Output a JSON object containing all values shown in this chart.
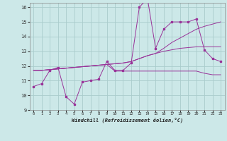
{
  "xlabel": "Windchill (Refroidissement éolien,°C)",
  "background_color": "#cce8e8",
  "grid_color": "#aacccc",
  "line_color": "#993399",
  "xmin": 0,
  "xmax": 23,
  "ymin": 9,
  "ymax": 16,
  "yticks": [
    9,
    10,
    11,
    12,
    13,
    14,
    15,
    16
  ],
  "xticks": [
    0,
    1,
    2,
    3,
    4,
    5,
    6,
    7,
    8,
    9,
    10,
    11,
    12,
    13,
    14,
    15,
    16,
    17,
    18,
    19,
    20,
    21,
    22,
    23
  ],
  "series1_x": [
    0,
    1,
    2,
    3,
    4,
    5,
    6,
    7,
    8,
    9,
    10,
    11,
    12,
    13,
    14,
    15,
    16,
    17,
    18,
    19,
    20,
    21,
    22,
    23
  ],
  "series1_y": [
    10.6,
    10.8,
    11.7,
    11.9,
    9.9,
    9.4,
    10.9,
    11.0,
    11.1,
    12.3,
    11.7,
    11.7,
    12.2,
    16.0,
    16.6,
    13.2,
    14.5,
    15.0,
    15.0,
    15.0,
    15.2,
    13.1,
    12.5,
    12.3
  ],
  "series2_y": [
    11.7,
    11.7,
    11.75,
    11.8,
    11.85,
    11.9,
    11.95,
    12.0,
    12.05,
    12.1,
    12.15,
    12.2,
    12.3,
    12.5,
    12.7,
    12.85,
    13.0,
    13.1,
    13.2,
    13.25,
    13.3,
    13.3,
    13.3,
    13.3
  ],
  "series3_y": [
    11.7,
    11.7,
    11.75,
    11.8,
    11.85,
    11.9,
    11.95,
    12.0,
    12.05,
    12.1,
    12.15,
    12.2,
    12.3,
    12.5,
    12.7,
    12.85,
    13.2,
    13.6,
    13.9,
    14.2,
    14.5,
    14.7,
    14.85,
    15.0
  ],
  "series4_y": [
    11.7,
    11.7,
    11.75,
    11.8,
    11.85,
    11.9,
    11.95,
    12.0,
    12.05,
    12.1,
    11.65,
    11.65,
    11.65,
    11.65,
    11.65,
    11.65,
    11.65,
    11.65,
    11.65,
    11.65,
    11.65,
    11.5,
    11.4,
    11.4
  ]
}
